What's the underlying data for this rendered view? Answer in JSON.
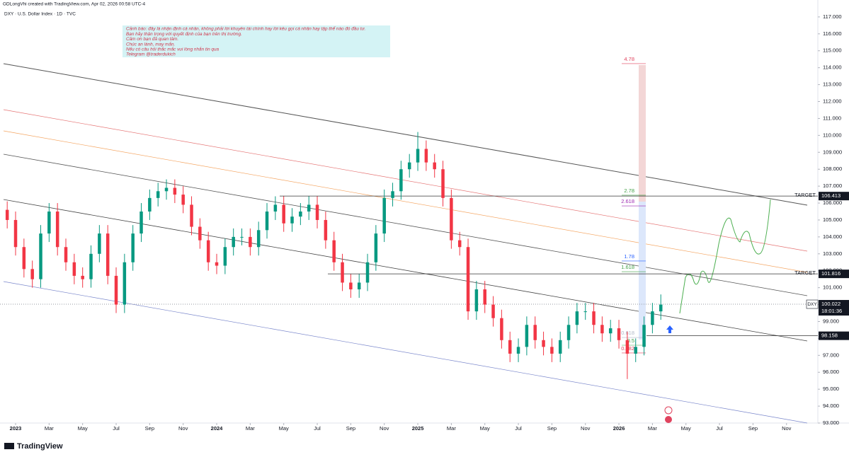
{
  "header": {
    "author_line": "GDLongVhi created with TradingView.com, Apr 02, 2026 00:58 UTC-4",
    "symbol_line": "DXY · U.S. Dollar Index · 1D · TVC"
  },
  "note": {
    "lines": [
      "Cảnh báo: đây là nhận định cá nhân, không phải lời khuyên tài chính hay lời kêu gọi cá nhân hay tập thể nào đó đầu tư.",
      "Bạn hãy thận trọng với quyết định của bạn trên thị trường.",
      "Cảm ơn bạn đã quan tâm.",
      "Chúc an lành, may mắn.",
      "Nếu có câu hỏi thắc mắc vui lòng nhắn tin qua",
      "Telegram @traderdukich"
    ]
  },
  "footer": {
    "logo": "TradingView"
  },
  "chart_data": {
    "type": "candlestick",
    "up_color": "#089981",
    "down_color": "#f23645",
    "x": [
      -0.5,
      0,
      0.5,
      1,
      1.5,
      2,
      2.5,
      3,
      3.5,
      4,
      4.5,
      5,
      5.5,
      6,
      6.5,
      7,
      7.5,
      8,
      8.5,
      9,
      9.5,
      10,
      10.5,
      11,
      11.5,
      12,
      12.5,
      13,
      13.5,
      14,
      14.5,
      15,
      15.5,
      16,
      16.5,
      17,
      17.5,
      18,
      18.5,
      19,
      19.5,
      20,
      20.5,
      21,
      21.5,
      22,
      22.5,
      23,
      23.5,
      24,
      24.5,
      25,
      25.5,
      26,
      26.5,
      27,
      27.5,
      28,
      28.5,
      29,
      29.5,
      30,
      30.5,
      31,
      31.5,
      32,
      32.5,
      33,
      33.5,
      34,
      34.5,
      35,
      35.5,
      36,
      36.5,
      37,
      37.5,
      38,
      38.5
    ],
    "open": [
      105.6,
      105.0,
      103.4,
      102.1,
      101.5,
      104.2,
      105.5,
      103.4,
      102.5,
      101.7,
      101.5,
      103.0,
      104.2,
      101.7,
      100.0,
      102.5,
      104.2,
      105.5,
      106.3,
      106.7,
      106.9,
      106.5,
      105.9,
      104.6,
      103.8,
      102.5,
      102.3,
      103.4,
      104.0,
      104.0,
      103.4,
      104.4,
      105.5,
      105.9,
      104.8,
      105.2,
      105.5,
      105.9,
      105.0,
      103.8,
      102.5,
      101.3,
      100.9,
      101.3,
      102.5,
      104.2,
      106.3,
      106.7,
      108.0,
      108.4,
      109.2,
      108.4,
      108.0,
      106.3,
      103.8,
      103.4,
      99.6,
      100.9,
      100.0,
      99.2,
      97.9,
      97.1,
      97.5,
      98.8,
      97.9,
      97.5,
      97.1,
      97.9,
      98.8,
      99.6,
      99.6,
      98.8,
      98.3,
      98.6,
      97.9,
      97.1,
      97.5,
      98.8,
      99.6
    ],
    "high": [
      106.1,
      105.5,
      103.9,
      102.6,
      104.7,
      106.0,
      106.0,
      103.9,
      103.0,
      102.2,
      103.5,
      104.7,
      104.7,
      102.2,
      103.0,
      104.7,
      106.0,
      106.8,
      107.2,
      107.4,
      107.4,
      107.0,
      106.4,
      105.1,
      104.3,
      103.0,
      103.9,
      104.5,
      104.5,
      104.5,
      104.9,
      106.0,
      106.4,
      106.4,
      105.7,
      106.0,
      106.4,
      106.4,
      105.5,
      104.3,
      103.0,
      101.8,
      101.8,
      103.0,
      104.7,
      106.8,
      107.2,
      108.5,
      108.9,
      110.2,
      109.7,
      108.9,
      108.5,
      106.8,
      104.3,
      103.9,
      101.4,
      101.4,
      100.5,
      99.7,
      98.4,
      98.0,
      99.3,
      99.3,
      98.4,
      98.0,
      98.4,
      99.3,
      100.1,
      100.1,
      100.1,
      99.3,
      99.1,
      99.1,
      98.4,
      98.0,
      99.3,
      100.1,
      100.6
    ],
    "low": [
      104.5,
      102.9,
      101.6,
      101.0,
      101.0,
      103.7,
      102.9,
      102.0,
      101.2,
      101.0,
      101.0,
      102.5,
      101.2,
      99.5,
      99.5,
      102.0,
      103.7,
      105.0,
      105.8,
      106.2,
      106.0,
      105.4,
      104.1,
      103.3,
      102.0,
      101.8,
      101.8,
      102.9,
      103.5,
      102.9,
      102.9,
      103.9,
      105.0,
      104.3,
      104.3,
      104.7,
      105.0,
      104.5,
      103.3,
      102.0,
      100.8,
      100.4,
      100.4,
      100.8,
      102.0,
      103.7,
      105.8,
      106.2,
      107.5,
      107.9,
      107.9,
      107.5,
      105.8,
      103.3,
      102.9,
      99.1,
      99.1,
      99.5,
      98.7,
      97.4,
      96.6,
      96.6,
      97.0,
      97.4,
      97.0,
      96.6,
      96.6,
      97.4,
      98.3,
      99.1,
      98.3,
      97.8,
      97.8,
      97.4,
      95.6,
      96.6,
      97.0,
      98.3,
      99.1
    ],
    "close": [
      105.0,
      103.4,
      102.1,
      101.5,
      104.2,
      105.5,
      103.4,
      102.5,
      101.7,
      101.5,
      103.0,
      104.2,
      101.7,
      100.0,
      102.5,
      104.2,
      105.5,
      106.3,
      106.7,
      106.9,
      106.5,
      105.9,
      104.6,
      103.8,
      102.5,
      102.3,
      103.4,
      104.0,
      104.0,
      103.4,
      104.4,
      105.5,
      105.9,
      104.8,
      105.2,
      105.5,
      105.9,
      105.0,
      103.8,
      102.5,
      101.3,
      100.9,
      101.3,
      102.5,
      104.2,
      106.3,
      106.7,
      108.0,
      108.4,
      109.2,
      108.4,
      108.0,
      106.3,
      103.8,
      103.4,
      99.6,
      100.9,
      100.0,
      99.2,
      97.9,
      97.1,
      97.5,
      98.8,
      97.9,
      97.5,
      97.1,
      97.9,
      98.8,
      99.6,
      99.6,
      98.8,
      98.3,
      98.6,
      97.9,
      97.1,
      97.5,
      98.8,
      99.6,
      100.0
    ],
    "xlim": [
      -0.93,
      47.87
    ],
    "xticks": [
      {
        "value": 0,
        "label": "2023"
      },
      {
        "value": 2,
        "label": "Mar"
      },
      {
        "value": 4,
        "label": "May"
      },
      {
        "value": 6,
        "label": "Jul"
      },
      {
        "value": 8,
        "label": "Sep"
      },
      {
        "value": 10,
        "label": "Nov"
      },
      {
        "value": 12,
        "label": "2024"
      },
      {
        "value": 14,
        "label": "Mar"
      },
      {
        "value": 16,
        "label": "May"
      },
      {
        "value": 18,
        "label": "Jul"
      },
      {
        "value": 20,
        "label": "Sep"
      },
      {
        "value": 22,
        "label": "Nov"
      },
      {
        "value": 24,
        "label": "2025"
      },
      {
        "value": 26,
        "label": "Mar"
      },
      {
        "value": 28,
        "label": "May"
      },
      {
        "value": 30,
        "label": "Jul"
      },
      {
        "value": 32,
        "label": "Sep"
      },
      {
        "value": 34,
        "label": "Nov"
      },
      {
        "value": 36,
        "label": "2026"
      },
      {
        "value": 38,
        "label": "Mar"
      },
      {
        "value": 40,
        "label": "May"
      },
      {
        "value": 42,
        "label": "Jul"
      },
      {
        "value": 44,
        "label": "Sep"
      },
      {
        "value": 46,
        "label": "Nov"
      }
    ],
    "ylim": [
      93,
      118
    ],
    "yticks": [
      {
        "value": 93,
        "label": "93.000"
      },
      {
        "value": 94,
        "label": "94.000"
      },
      {
        "value": 95,
        "label": "95.000"
      },
      {
        "value": 96,
        "label": "96.000"
      },
      {
        "value": 97,
        "label": "97.000"
      },
      {
        "value": 98,
        "label": "98.000"
      },
      {
        "value": 99,
        "label": "99.000"
      },
      {
        "value": 100,
        "label": "100.000"
      },
      {
        "value": 101,
        "label": "101.000"
      },
      {
        "value": 102,
        "label": "102.000"
      },
      {
        "value": 103,
        "label": "103.000"
      },
      {
        "value": 104,
        "label": "104.000"
      },
      {
        "value": 105,
        "label": "105.000"
      },
      {
        "value": 106,
        "label": "106.000"
      },
      {
        "value": 107,
        "label": "107.000"
      },
      {
        "value": 108,
        "label": "108.000"
      },
      {
        "value": 109,
        "label": "109.000"
      },
      {
        "value": 110,
        "label": "110.000"
      },
      {
        "value": 111,
        "label": "111.000"
      },
      {
        "value": 112,
        "label": "112.000"
      },
      {
        "value": 113,
        "label": "113.000"
      },
      {
        "value": 114,
        "label": "114.000"
      },
      {
        "value": 115,
        "label": "115.000"
      },
      {
        "value": 116,
        "label": "116.000"
      },
      {
        "value": 117,
        "label": "117.000"
      }
    ],
    "price_lines": [
      {
        "label": "TARGET",
        "value": 106.413
      },
      {
        "label": "TARGET",
        "value": 101.816
      },
      {
        "value": 98.158
      }
    ],
    "last_price": {
      "symbol": "DXY",
      "value": 100.022,
      "countdown": "18:01:36"
    },
    "fib_levels": [
      4.78,
      2.78,
      2.618,
      1.78,
      1.618,
      0.618,
      0.5,
      0.382
    ],
    "fib_colors": [
      "#e0435e",
      "#43a047",
      "#9c27b0",
      "#2962ff",
      "#43a047",
      "#b0b8c8",
      "#43a047",
      "#e0435e"
    ]
  }
}
